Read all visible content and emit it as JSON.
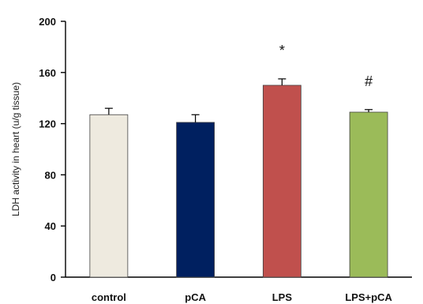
{
  "chart_data": {
    "type": "bar",
    "categories": [
      "control",
      "pCA",
      "LPS",
      "LPS+pCA"
    ],
    "values": [
      127,
      121,
      150,
      129
    ],
    "errors": [
      5,
      6,
      5,
      2
    ],
    "colors": [
      "#EEEADF",
      "#002060",
      "#C0504D",
      "#9BBB59"
    ],
    "annotations": [
      "",
      "",
      "*",
      "#"
    ],
    "ylabel": "LDH  activity  in heart (u/g tissue)",
    "ylim": [
      0,
      200
    ],
    "yticks": [
      0,
      40,
      80,
      120,
      160,
      200
    ],
    "grid": false
  }
}
